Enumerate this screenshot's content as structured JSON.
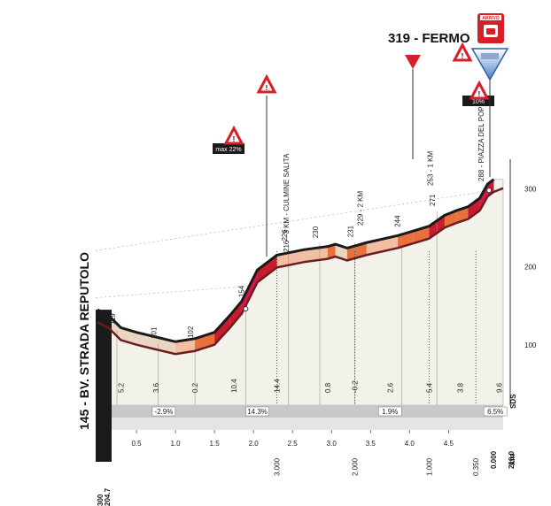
{
  "chart_data": {
    "type": "area",
    "title": "",
    "start_label": "145 - BV. STRADA REPUTOLO",
    "finish_label": "319 - FERMO",
    "finish_badge": "ARRIVO",
    "x_unit": "km",
    "x_total": "210.0",
    "x_ticks_left": [
      "0.5",
      "1.0",
      "1.5",
      "2.0",
      "2.5",
      "3.0",
      "3.5",
      "4.0",
      "4.5"
    ],
    "x_ticks_right": [
      "204.7",
      "0.000",
      "210.0"
    ],
    "y_axis_label": "SDS",
    "y_ticks": [
      100,
      200,
      300
    ],
    "ylim": [
      0,
      320
    ],
    "profile": [
      {
        "x": 0.0,
        "y": 145
      },
      {
        "x": 0.15,
        "y": 137
      },
      {
        "x": 0.3,
        "y": 122
      },
      {
        "x": 0.5,
        "y": 116
      },
      {
        "x": 0.75,
        "y": 110
      },
      {
        "x": 1.0,
        "y": 104
      },
      {
        "x": 1.25,
        "y": 108
      },
      {
        "x": 1.5,
        "y": 116
      },
      {
        "x": 1.7,
        "y": 138
      },
      {
        "x": 1.85,
        "y": 156
      },
      {
        "x": 2.05,
        "y": 196
      },
      {
        "x": 2.3,
        "y": 215
      },
      {
        "x": 2.65,
        "y": 222
      },
      {
        "x": 2.95,
        "y": 226
      },
      {
        "x": 3.05,
        "y": 229
      },
      {
        "x": 3.2,
        "y": 224
      },
      {
        "x": 3.45,
        "y": 231
      },
      {
        "x": 3.85,
        "y": 240
      },
      {
        "x": 4.05,
        "y": 246
      },
      {
        "x": 4.25,
        "y": 252
      },
      {
        "x": 4.45,
        "y": 266
      },
      {
        "x": 4.6,
        "y": 272
      },
      {
        "x": 4.75,
        "y": 277
      },
      {
        "x": 4.9,
        "y": 288
      },
      {
        "x": 5.0,
        "y": 306
      },
      {
        "x": 5.08,
        "y": 312
      }
    ],
    "elevation_labels": [
      {
        "x": 0.25,
        "y": 119,
        "text": "119"
      },
      {
        "x": 0.78,
        "y": 101,
        "text": "101"
      },
      {
        "x": 1.25,
        "y": 102,
        "text": "102"
      },
      {
        "x": 1.9,
        "y": 154,
        "text": "154"
      },
      {
        "x": 2.45,
        "y": 226,
        "text": "226"
      },
      {
        "x": 2.85,
        "y": 230,
        "text": "230"
      },
      {
        "x": 3.3,
        "y": 231,
        "text": "231"
      },
      {
        "x": 3.9,
        "y": 244,
        "text": "244"
      },
      {
        "x": 4.35,
        "y": 271,
        "text": "271"
      }
    ],
    "segment_lengths": [
      {
        "x": 0.3,
        "text": "5.2"
      },
      {
        "x": 0.75,
        "text": "3.6"
      },
      {
        "x": 1.25,
        "text": "0.2"
      },
      {
        "x": 1.75,
        "text": "10.4"
      },
      {
        "x": 2.3,
        "text": "14.4"
      },
      {
        "x": 2.95,
        "text": "0.8"
      },
      {
        "x": 3.3,
        "text": "-0.2"
      },
      {
        "x": 3.75,
        "text": "2.6"
      },
      {
        "x": 4.25,
        "text": "5.4"
      },
      {
        "x": 4.65,
        "text": "3.8"
      },
      {
        "x": 5.15,
        "text": "9.6"
      }
    ],
    "gradients": [
      {
        "x": 0.85,
        "text": "-2.9%"
      },
      {
        "x": 2.05,
        "text": "14.3%"
      },
      {
        "x": 3.75,
        "text": "1.9%"
      },
      {
        "x": 5.1,
        "text": "6.5%"
      }
    ],
    "distances_to_finish": [
      {
        "x": 2.3,
        "text": "3.000"
      },
      {
        "x": 3.3,
        "text": "2.000"
      },
      {
        "x": 4.25,
        "text": "1.000"
      },
      {
        "x": 4.85,
        "text": "0.350"
      }
    ],
    "annotations": [
      {
        "x": 2.45,
        "text": "216 - 3 KM - CULMINE SALITA"
      },
      {
        "x": 3.4,
        "text": "229 - 2 KM"
      },
      {
        "x": 4.3,
        "text": "253 - 1 KM"
      },
      {
        "x": 4.95,
        "text": "288 - PIAZZA DEL POPOLO"
      }
    ],
    "badges": [
      {
        "x": 1.85,
        "text": "max 22%"
      },
      {
        "x": 4.95,
        "text": "10%"
      }
    ],
    "colors": {
      "steep": "#d8164c",
      "steep2": "#c91a2e",
      "moderate": "#e8703a",
      "mild": "#f2bfa2",
      "road": "#6b1d22",
      "area": "#f2f2ea",
      "base": "#c8c8c8"
    }
  }
}
